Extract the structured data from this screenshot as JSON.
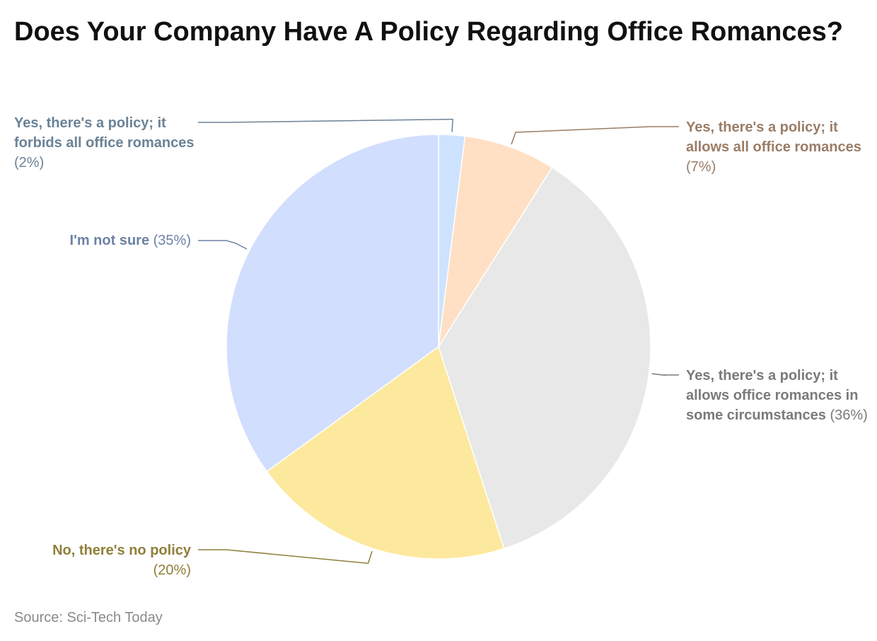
{
  "chart_data": {
    "type": "pie",
    "title": "Does Your Company Have A Policy Regarding Office Romances?",
    "start_angle_deg": 0,
    "direction": "clockwise",
    "slices": [
      {
        "label": "Yes, there's a policy; it forbids all office romances",
        "value": 2,
        "value_label": "(2%)",
        "color": "#CDE3FF",
        "text_color": "#6B8296"
      },
      {
        "label": "Yes, there's a policy; it allows all office romances",
        "value": 7,
        "value_label": "(7%)",
        "color": "#FFE0C4",
        "text_color": "#9A7D67"
      },
      {
        "label": "Yes, there's a policy; it allows office romances in some circumstances",
        "value": 36,
        "value_label": "(36%)",
        "color": "#E8E8E8",
        "text_color": "#7A7A7A"
      },
      {
        "label": "No, there's no policy",
        "value": 20,
        "value_label": "(20%)",
        "color": "#FDE99D",
        "text_color": "#8F7F3A"
      },
      {
        "label": "I'm not sure",
        "value": 35,
        "value_label": "(35%)",
        "color": "#D2DEFD",
        "text_color": "#6D82A5"
      }
    ]
  },
  "source": "Source: Sci-Tech Today"
}
